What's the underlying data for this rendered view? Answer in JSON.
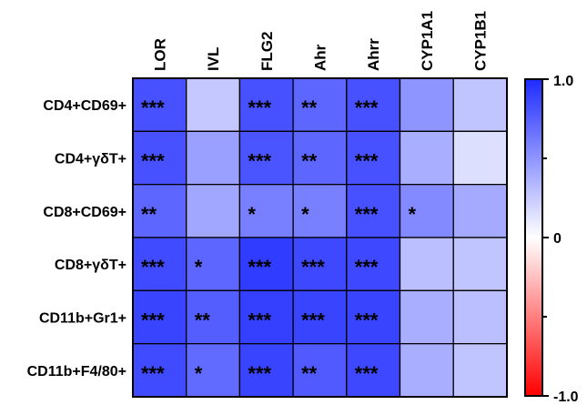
{
  "chart_data": {
    "type": "heatmap",
    "title": "",
    "columns": [
      "LOR",
      "IVL",
      "FLG2",
      "Ahr",
      "Ahrr",
      "CYP1A1",
      "CYP1B1"
    ],
    "rows": [
      "CD4+CD69+",
      "CD4+γδT+",
      "CD8+CD69+",
      "CD8+γδT+",
      "CD11b+Gr1+",
      "CD11b+F4/80+"
    ],
    "values": [
      [
        0.82,
        0.26,
        0.82,
        0.72,
        0.82,
        0.5,
        0.28
      ],
      [
        0.82,
        0.45,
        0.8,
        0.72,
        0.82,
        0.38,
        0.15
      ],
      [
        0.72,
        0.42,
        0.6,
        0.6,
        0.82,
        0.55,
        0.4
      ],
      [
        0.85,
        0.72,
        0.92,
        0.86,
        0.86,
        0.3,
        0.28
      ],
      [
        0.88,
        0.76,
        0.9,
        0.88,
        0.88,
        0.38,
        0.3
      ],
      [
        0.85,
        0.7,
        0.88,
        0.78,
        0.86,
        0.38,
        0.28
      ]
    ],
    "significance": [
      [
        "***",
        "",
        "***",
        "**",
        "***",
        "",
        ""
      ],
      [
        "***",
        "",
        "***",
        "**",
        "***",
        "",
        ""
      ],
      [
        "**",
        "",
        "*",
        "*",
        "***",
        "*",
        ""
      ],
      [
        "***",
        "*",
        "***",
        "***",
        "***",
        "",
        ""
      ],
      [
        "***",
        "**",
        "***",
        "***",
        "***",
        "",
        ""
      ],
      [
        "***",
        "*",
        "***",
        "**",
        "***",
        "",
        ""
      ]
    ],
    "colorbar": {
      "min": -1.0,
      "max": 1.0,
      "tick_labels": [
        {
          "value": 1.0,
          "label": "1.0"
        },
        {
          "value": 0,
          "label": "0"
        },
        {
          "value": -1.0,
          "label": "-1.0"
        }
      ],
      "minor_ticks": [
        0.5,
        -0.5
      ],
      "colors": {
        "max": "#1e2bff",
        "mid": "#ffffff",
        "min": "#ff0000"
      }
    },
    "grid": true,
    "legend_position": "right"
  }
}
